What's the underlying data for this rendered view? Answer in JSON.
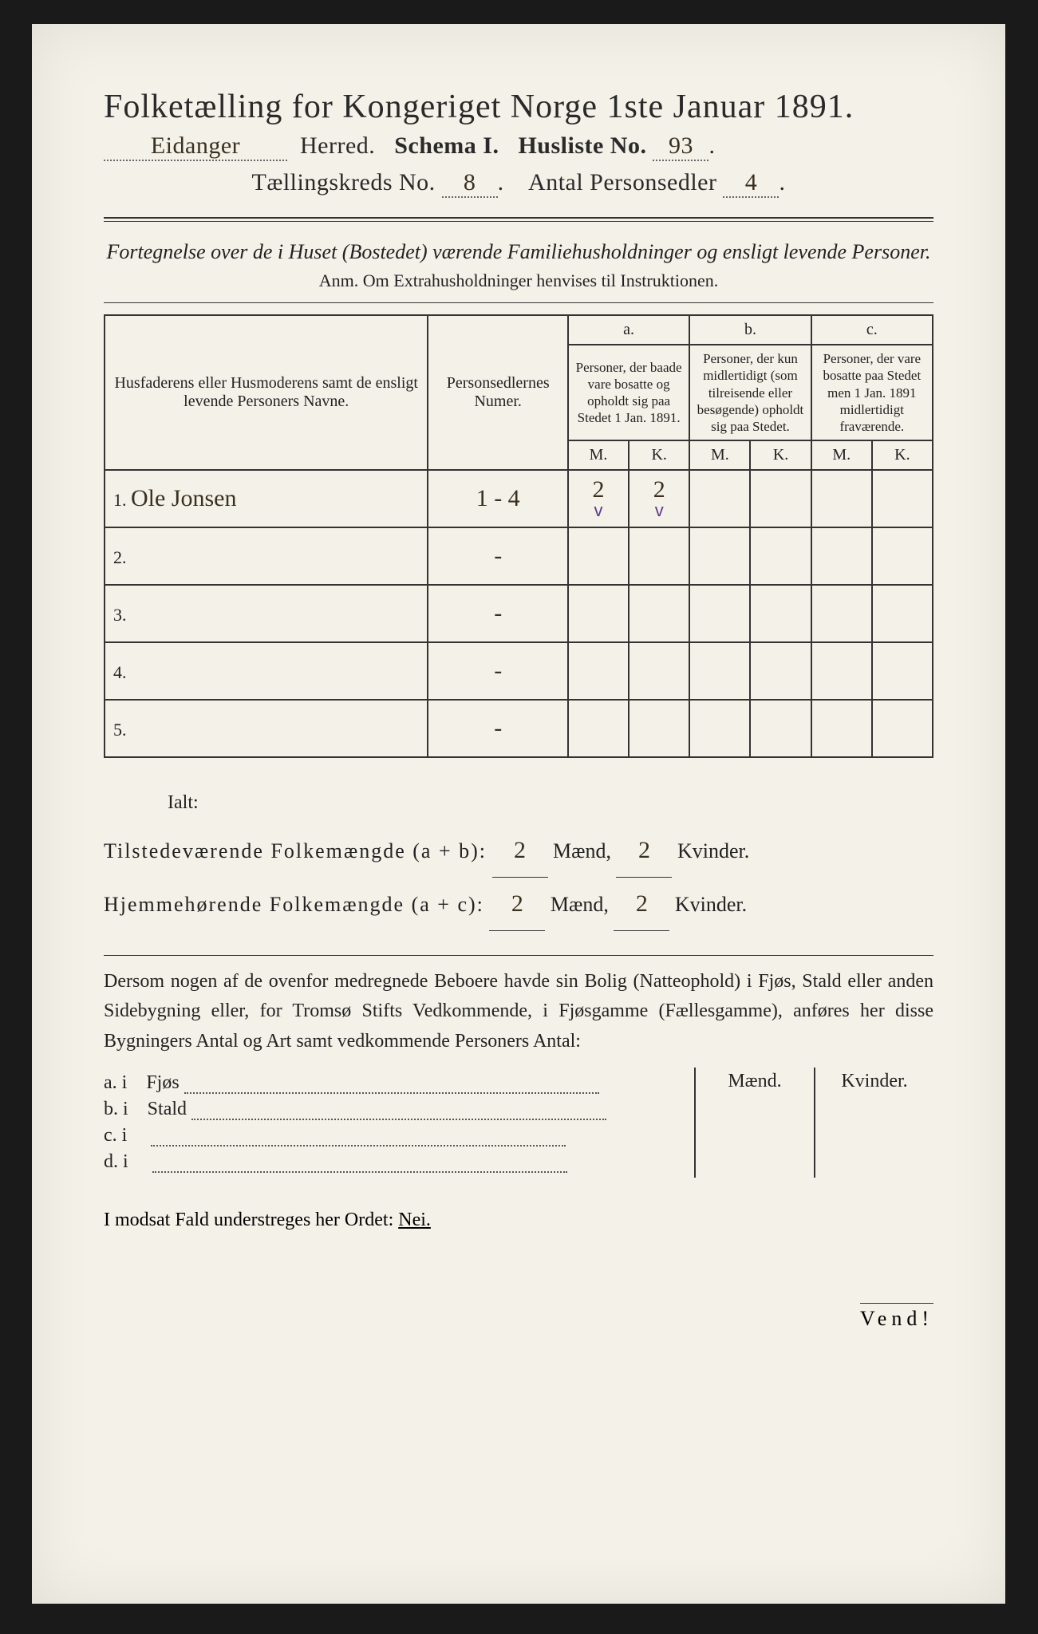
{
  "title": "Folketælling for Kongeriget Norge 1ste Januar 1891.",
  "line2": {
    "herred_value": "Eidanger",
    "herred_label": "Herred.",
    "schema_label": "Schema I.",
    "husliste_label": "Husliste No.",
    "husliste_value": "93"
  },
  "line3": {
    "kreds_label": "Tællingskreds No.",
    "kreds_value": "8",
    "sedler_label": "Antal Personsedler",
    "sedler_value": "4"
  },
  "subhead": "Fortegnelse over de i Huset (Bostedet) værende Familiehusholdninger og ensligt levende Personer.",
  "anm": "Anm.  Om Extrahusholdninger henvises til Instruktionen.",
  "table": {
    "headers": {
      "col1": "Husfaderens eller Husmoderens samt de ensligt levende Personers Navne.",
      "col2": "Personsedlernes Numer.",
      "a_top": "a.",
      "a": "Personer, der baade vare bosatte og opholdt sig paa Stedet 1 Jan. 1891.",
      "b_top": "b.",
      "b": "Personer, der kun midlertidigt (som tilreisende eller besøgende) opholdt sig paa Stedet.",
      "c_top": "c.",
      "c": "Personer, der vare bosatte paa Stedet men 1 Jan. 1891 midlertidigt fraværende.",
      "M": "M.",
      "K": "K."
    },
    "rows": [
      {
        "n": "1.",
        "name": "Ole Jonsen",
        "numer": "1 - 4",
        "aM": "2",
        "aK": "2",
        "aM_v": "v",
        "aK_v": "v",
        "bM": "",
        "bK": "",
        "cM": "",
        "cK": ""
      },
      {
        "n": "2.",
        "name": "",
        "numer": "-",
        "aM": "",
        "aK": "",
        "bM": "",
        "bK": "",
        "cM": "",
        "cK": ""
      },
      {
        "n": "3.",
        "name": "",
        "numer": "-",
        "aM": "",
        "aK": "",
        "bM": "",
        "bK": "",
        "cM": "",
        "cK": ""
      },
      {
        "n": "4.",
        "name": "",
        "numer": "-",
        "aM": "",
        "aK": "",
        "bM": "",
        "bK": "",
        "cM": "",
        "cK": ""
      },
      {
        "n": "5.",
        "name": "",
        "numer": "-",
        "aM": "",
        "aK": "",
        "bM": "",
        "bK": "",
        "cM": "",
        "cK": ""
      }
    ]
  },
  "totals": {
    "ialt": "Ialt:",
    "tilstede_label": "Tilstedeværende Folkemængde (a + b):",
    "hjemme_label": "Hjemmehørende Folkemængde (a + c):",
    "maend": "Mænd,",
    "kvinder": "Kvinder.",
    "t_m": "2",
    "t_k": "2",
    "h_m": "2",
    "h_k": "2"
  },
  "para": "Dersom nogen af de ovenfor medregnede Beboere havde sin Bolig (Natteophold) i Fjøs, Stald eller anden Sidebygning eller, for Tromsø Stifts Vedkommende, i Fjøsgamme (Fællesgamme), anføres her disse Bygningers Antal og Art samt vedkommende Personers Antal:",
  "sidebld": {
    "maend": "Mænd.",
    "kvinder": "Kvinder.",
    "rows": [
      {
        "k": "a.  i",
        "label": "Fjøs"
      },
      {
        "k": "b.  i",
        "label": "Stald"
      },
      {
        "k": "c.  i",
        "label": ""
      },
      {
        "k": "d.  i",
        "label": ""
      }
    ]
  },
  "nei": {
    "pre": "I modsat Fald understreges her Ordet:",
    "word": "Nei."
  },
  "vend": "Vend!"
}
